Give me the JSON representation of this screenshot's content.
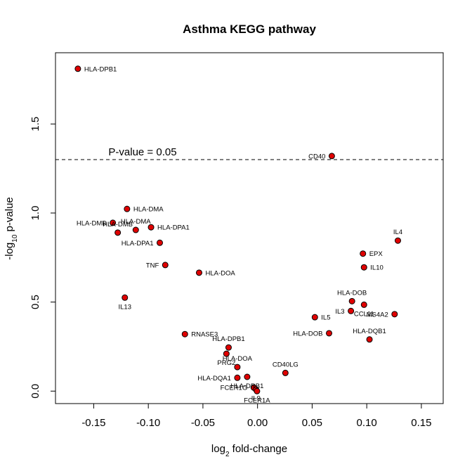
{
  "chart_data": {
    "type": "scatter",
    "title": "Asthma KEGG pathway",
    "xlabel_parts": [
      "log",
      "2",
      " fold-change"
    ],
    "ylabel_parts": [
      "-log",
      "10",
      " p-value"
    ],
    "xlim": [
      -0.185,
      0.17
    ],
    "ylim": [
      -0.07,
      1.9
    ],
    "x_ticks": [
      -0.15,
      -0.1,
      -0.05,
      0.0,
      0.05,
      0.1,
      0.15
    ],
    "x_tick_labels": [
      "-0.15",
      "-0.10",
      "-0.05",
      "0.00",
      "0.05",
      "0.10",
      "0.15"
    ],
    "y_ticks": [
      0.0,
      0.5,
      1.0,
      1.5
    ],
    "y_tick_labels": [
      "0.0",
      "0.5",
      "1.0",
      "1.5"
    ],
    "threshold": {
      "y": 1.3,
      "label": "P-value = 0.05"
    },
    "point_color": "#e00000",
    "grid": false,
    "points": [
      {
        "x": -0.1645,
        "y": 1.81,
        "label": "HLA-DPB1",
        "pos": "right"
      },
      {
        "x": 0.068,
        "y": 1.32,
        "label": "CD40",
        "pos": "left"
      },
      {
        "x": -0.1195,
        "y": 1.023,
        "label": "HLA-DMA",
        "pos": "right"
      },
      {
        "x": -0.1325,
        "y": 0.945,
        "label": "HLA-DMB",
        "pos": "left"
      },
      {
        "x": -0.128,
        "y": 0.89,
        "label": "HLA-DMB",
        "pos": "top"
      },
      {
        "x": -0.1115,
        "y": 0.905,
        "label": "HLA-DMA",
        "pos": "top"
      },
      {
        "x": -0.0975,
        "y": 0.92,
        "label": "HLA-DPA1",
        "pos": "right"
      },
      {
        "x": -0.0895,
        "y": 0.833,
        "label": "HLA-DPA1",
        "pos": "left"
      },
      {
        "x": -0.0665,
        "y": 0.32,
        "label": "RNASE3",
        "pos": "right"
      },
      {
        "x": -0.0845,
        "y": 0.708,
        "label": "TNF",
        "pos": "left"
      },
      {
        "x": -0.0535,
        "y": 0.665,
        "label": "HLA-DOA",
        "pos": "right"
      },
      {
        "x": -0.1215,
        "y": 0.525,
        "label": "IL13",
        "pos": "bottom"
      },
      {
        "x": 0.1285,
        "y": 0.845,
        "label": "IL4",
        "pos": "top"
      },
      {
        "x": 0.0965,
        "y": 0.772,
        "label": "EPX",
        "pos": "right"
      },
      {
        "x": 0.0975,
        "y": 0.695,
        "label": "IL10",
        "pos": "right"
      },
      {
        "x": 0.0865,
        "y": 0.505,
        "label": "HLA-DOB",
        "pos": "top"
      },
      {
        "x": 0.0975,
        "y": 0.485,
        "label": "CCL11",
        "pos": "bottom"
      },
      {
        "x": 0.0855,
        "y": 0.45,
        "label": "IL3",
        "pos": "left"
      },
      {
        "x": 0.1255,
        "y": 0.432,
        "label": "MS4A2",
        "pos": "left"
      },
      {
        "x": 0.0525,
        "y": 0.415,
        "label": "IL5",
        "pos": "right"
      },
      {
        "x": 0.0655,
        "y": 0.325,
        "label": "HLA-DOB",
        "pos": "left"
      },
      {
        "x": 0.1025,
        "y": 0.29,
        "label": "HLA-DQB1",
        "pos": "top"
      },
      {
        "x": 0.0255,
        "y": 0.102,
        "label": "CD40LG",
        "pos": "top"
      },
      {
        "x": -0.0265,
        "y": 0.245,
        "label": "HLA-DPB1",
        "pos": "top"
      },
      {
        "x": -0.0285,
        "y": 0.21,
        "label": "PRG2",
        "pos": "bottom"
      },
      {
        "x": -0.0185,
        "y": 0.135,
        "label": "HLA-DOA",
        "pos": "top"
      },
      {
        "x": -0.0185,
        "y": 0.075,
        "label": "HLA-DQA1",
        "pos": "left"
      },
      {
        "x": -0.0095,
        "y": 0.08,
        "label": "HLA-DRB1",
        "pos": "bottom"
      },
      {
        "x": -0.0035,
        "y": 0.02,
        "label": "FCER1G",
        "pos": "left"
      },
      {
        "x": -0.0015,
        "y": 0.01,
        "label": "IL9",
        "pos": "bottom"
      },
      {
        "x": -0.0005,
        "y": 0.0,
        "label": "FCER1A",
        "pos": "bottom"
      }
    ]
  }
}
